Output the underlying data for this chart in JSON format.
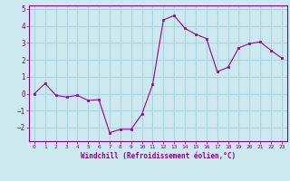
{
  "x": [
    0,
    1,
    2,
    3,
    4,
    5,
    6,
    7,
    8,
    9,
    10,
    11,
    12,
    13,
    14,
    15,
    16,
    17,
    18,
    19,
    20,
    21,
    22,
    23
  ],
  "y": [
    0.0,
    0.6,
    -0.1,
    -0.2,
    -0.1,
    -0.4,
    -0.35,
    -2.3,
    -2.1,
    -2.1,
    -1.2,
    0.55,
    4.35,
    4.6,
    3.85,
    3.5,
    3.25,
    1.3,
    1.55,
    2.7,
    2.95,
    3.05,
    2.55,
    2.1
  ],
  "line_color": "#990099",
  "marker_color": "#990099",
  "bg_color": "#cce9f0",
  "grid_color": "#aad4de",
  "xlabel": "Windchill (Refroidissement éolien,°C)",
  "ylim": [
    -2.8,
    5.2
  ],
  "xlim": [
    -0.5,
    23.5
  ],
  "yticks": [
    -2,
    -1,
    0,
    1,
    2,
    3,
    4,
    5
  ],
  "xticks": [
    0,
    1,
    2,
    3,
    4,
    5,
    6,
    7,
    8,
    9,
    10,
    11,
    12,
    13,
    14,
    15,
    16,
    17,
    18,
    19,
    20,
    21,
    22,
    23
  ],
  "tick_label_color": "#880088",
  "xlabel_color": "#880088",
  "axis_color": "#880088"
}
